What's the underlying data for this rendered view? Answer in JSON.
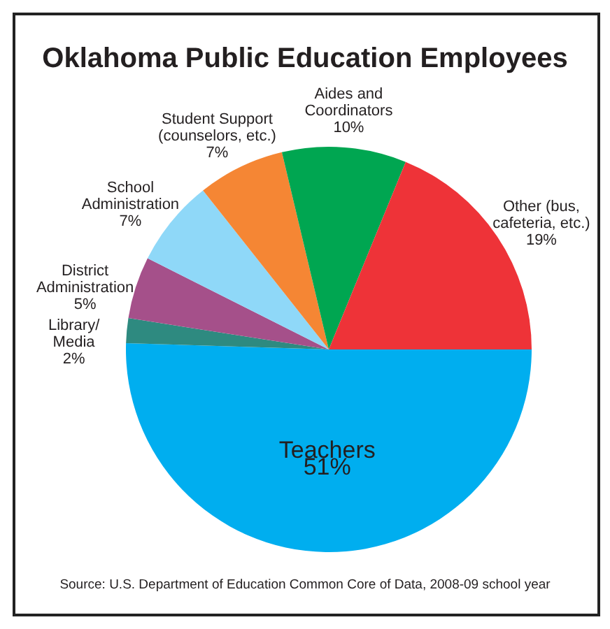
{
  "chart_data": {
    "type": "pie",
    "title": "Oklahoma Public Education Employees",
    "categories": [
      "Teachers",
      "Library/\nMedia",
      "District\nAdministration",
      "School\nAdministration",
      "Student Support\n(counselors, etc.)",
      "Aides and\nCoordinators",
      "Other (bus,\ncafeteria, etc.)"
    ],
    "values": [
      51,
      2,
      5,
      7,
      7,
      10,
      19
    ],
    "value_labels": [
      "51%",
      "2%",
      "5%",
      "7%",
      "7%",
      "10%",
      "19%"
    ],
    "colors": [
      "#00aeef",
      "#2e8a80",
      "#a5508a",
      "#8fd8f8",
      "#f58634",
      "#00a651",
      "#ee3338"
    ],
    "annotations": [
      "Source: U.S. Department of Education Common Core of Data, 2008-09 school year"
    ]
  }
}
